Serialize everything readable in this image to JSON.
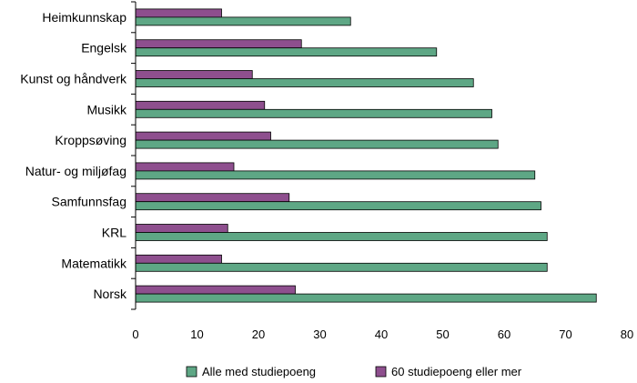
{
  "chart_data": {
    "type": "bar",
    "orientation": "horizontal",
    "categories": [
      "Heimkunnskap",
      "Engelsk",
      "Kunst og håndverk",
      "Musikk",
      "Kroppsøving",
      "Natur- og miljøfag",
      "Samfunnsfag",
      "KRL",
      "Matematikk",
      "Norsk"
    ],
    "series": [
      {
        "name": "60 studiepoeng eller mer",
        "color": "#8e4f8e",
        "values": [
          14,
          27,
          19,
          21,
          22,
          16,
          25,
          15,
          14,
          26
        ]
      },
      {
        "name": "Alle med studiepoeng",
        "color": "#5ea785",
        "values": [
          35,
          49,
          55,
          58,
          59,
          65,
          66,
          67,
          67,
          75
        ]
      }
    ],
    "xlim": [
      0,
      80
    ],
    "xticks": [
      0,
      10,
      20,
      30,
      40,
      50,
      60,
      70,
      80
    ],
    "title": "",
    "xlabel": "",
    "ylabel": "",
    "grid": false,
    "legend": {
      "position": "bottom",
      "order": [
        "Alle med studiepoeng",
        "60 studiepoeng eller mer"
      ]
    }
  }
}
